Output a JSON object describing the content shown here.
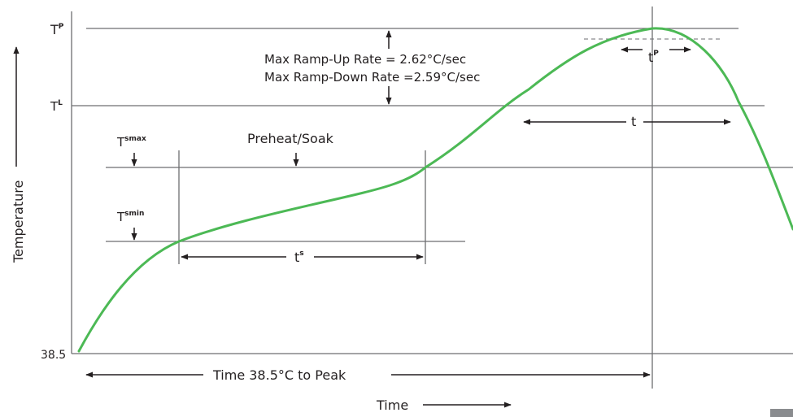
{
  "labels": {
    "tp": "T",
    "tp_sub": "P",
    "tl": "T",
    "tl_sub": "L",
    "tsmax": "T",
    "tsmax_sub": "smax",
    "tsmin": "T",
    "tsmin_sub": "smin",
    "y_min": "38.5",
    "ramp_up": "Max Ramp-Up Rate = 2.62°C/sec",
    "ramp_down": "Max Ramp-Down Rate =2.59°C/sec",
    "preheat": "Preheat/Soak",
    "t_peak": "t",
    "t_peak_sub": "P",
    "t_liquidus": "t",
    "t_soak": "t",
    "t_soak_sub": "s",
    "time_to_peak": "Time 38.5°C to Peak",
    "x_axis": "Time",
    "y_axis": "Temperature"
  },
  "colors": {
    "curve": "#4cb955",
    "lines": "#6d6e71",
    "text": "#231f20"
  }
}
